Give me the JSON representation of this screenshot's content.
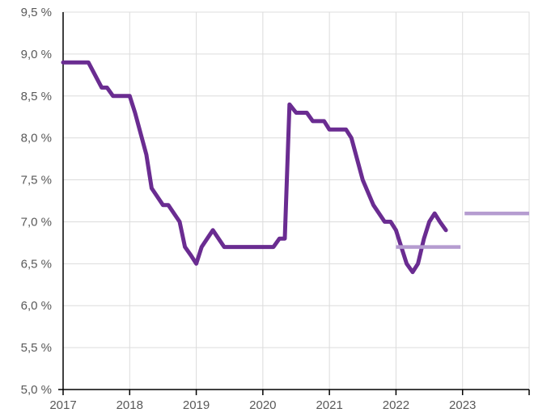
{
  "chart_data": {
    "type": "line",
    "title": "",
    "xlabel": "",
    "ylabel": "",
    "xlim": [
      2017,
      2024
    ],
    "ylim": [
      5.0,
      9.5
    ],
    "grid": true,
    "legend": "none",
    "x_ticks": [
      "2017",
      "2018",
      "2019",
      "2020",
      "2021",
      "2022",
      "2023"
    ],
    "y_ticks": [
      "5,0 %",
      "5,5 %",
      "6,0 %",
      "6,5 %",
      "7,0 %",
      "7,5 %",
      "8,0 %",
      "8,5 %",
      "9,0 %",
      "9,5 %"
    ],
    "series": [
      {
        "color": "#6a2c91",
        "points": [
          [
            2017.0,
            8.9
          ],
          [
            2017.38,
            8.9
          ],
          [
            2017.58,
            8.6
          ],
          [
            2017.66,
            8.6
          ],
          [
            2017.75,
            8.5
          ],
          [
            2018.0,
            8.5
          ],
          [
            2018.08,
            8.3
          ],
          [
            2018.25,
            7.8
          ],
          [
            2018.33,
            7.4
          ],
          [
            2018.5,
            7.2
          ],
          [
            2018.58,
            7.2
          ],
          [
            2018.75,
            7.0
          ],
          [
            2018.83,
            6.7
          ],
          [
            2018.92,
            6.6
          ],
          [
            2019.0,
            6.5
          ],
          [
            2019.08,
            6.7
          ],
          [
            2019.25,
            6.9
          ],
          [
            2019.42,
            6.7
          ],
          [
            2020.16,
            6.7
          ],
          [
            2020.25,
            6.8
          ],
          [
            2020.33,
            6.8
          ],
          [
            2020.4,
            8.4
          ],
          [
            2020.5,
            8.3
          ],
          [
            2020.66,
            8.3
          ],
          [
            2020.75,
            8.2
          ],
          [
            2020.92,
            8.2
          ],
          [
            2021.0,
            8.1
          ],
          [
            2021.25,
            8.1
          ],
          [
            2021.33,
            8.0
          ],
          [
            2021.5,
            7.5
          ],
          [
            2021.66,
            7.2
          ],
          [
            2021.83,
            7.0
          ],
          [
            2021.92,
            7.0
          ],
          [
            2022.0,
            6.9
          ],
          [
            2022.08,
            6.7
          ],
          [
            2022.16,
            6.5
          ],
          [
            2022.25,
            6.4
          ],
          [
            2022.33,
            6.5
          ],
          [
            2022.42,
            6.8
          ],
          [
            2022.5,
            7.0
          ],
          [
            2022.58,
            7.1
          ],
          [
            2022.66,
            7.0
          ],
          [
            2022.75,
            6.9
          ]
        ]
      },
      {
        "color": "#b59cd0",
        "points": [
          [
            2022.0,
            6.7
          ],
          [
            2022.97,
            6.7
          ]
        ]
      },
      {
        "color": "#b59cd0",
        "points": [
          [
            2023.03,
            7.1
          ],
          [
            2024.0,
            7.1
          ]
        ]
      }
    ]
  }
}
